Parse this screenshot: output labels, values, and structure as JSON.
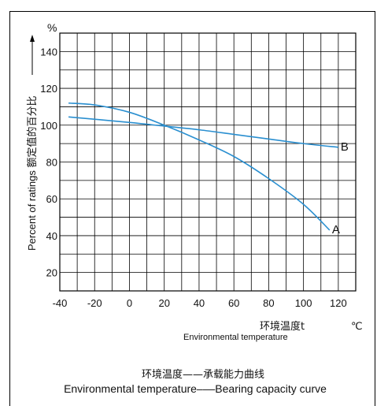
{
  "chart_data": {
    "type": "line",
    "y_unit": "%",
    "ylabel": "Percent of ratings 额定值的百分比",
    "xlabel_cn": "环境温度t",
    "xlabel_unit": "℃",
    "xlabel_en": "Environmental temperature",
    "caption_cn": "环境温度——承载能力曲线",
    "caption_en": "Environmental temperature–––Bearing capacity curve",
    "x_ticks": [
      -40,
      -20,
      0,
      20,
      40,
      60,
      80,
      100,
      120
    ],
    "y_ticks": [
      20,
      40,
      60,
      80,
      100,
      120,
      140
    ],
    "xlim": [
      -40,
      130
    ],
    "ylim": [
      10,
      150
    ],
    "grid": true,
    "line_color": "#2a8fd0",
    "series": [
      {
        "name": "A",
        "x": [
          -35,
          -20,
          0,
          20,
          40,
          60,
          80,
          100,
          115
        ],
        "y": [
          112,
          111,
          107,
          100,
          92,
          83,
          71,
          57,
          43
        ]
      },
      {
        "name": "B",
        "x": [
          -35,
          0,
          20,
          40,
          60,
          80,
          100,
          120
        ],
        "y": [
          104.5,
          101.5,
          99.5,
          97.5,
          95,
          92.5,
          90,
          88
        ]
      }
    ]
  }
}
